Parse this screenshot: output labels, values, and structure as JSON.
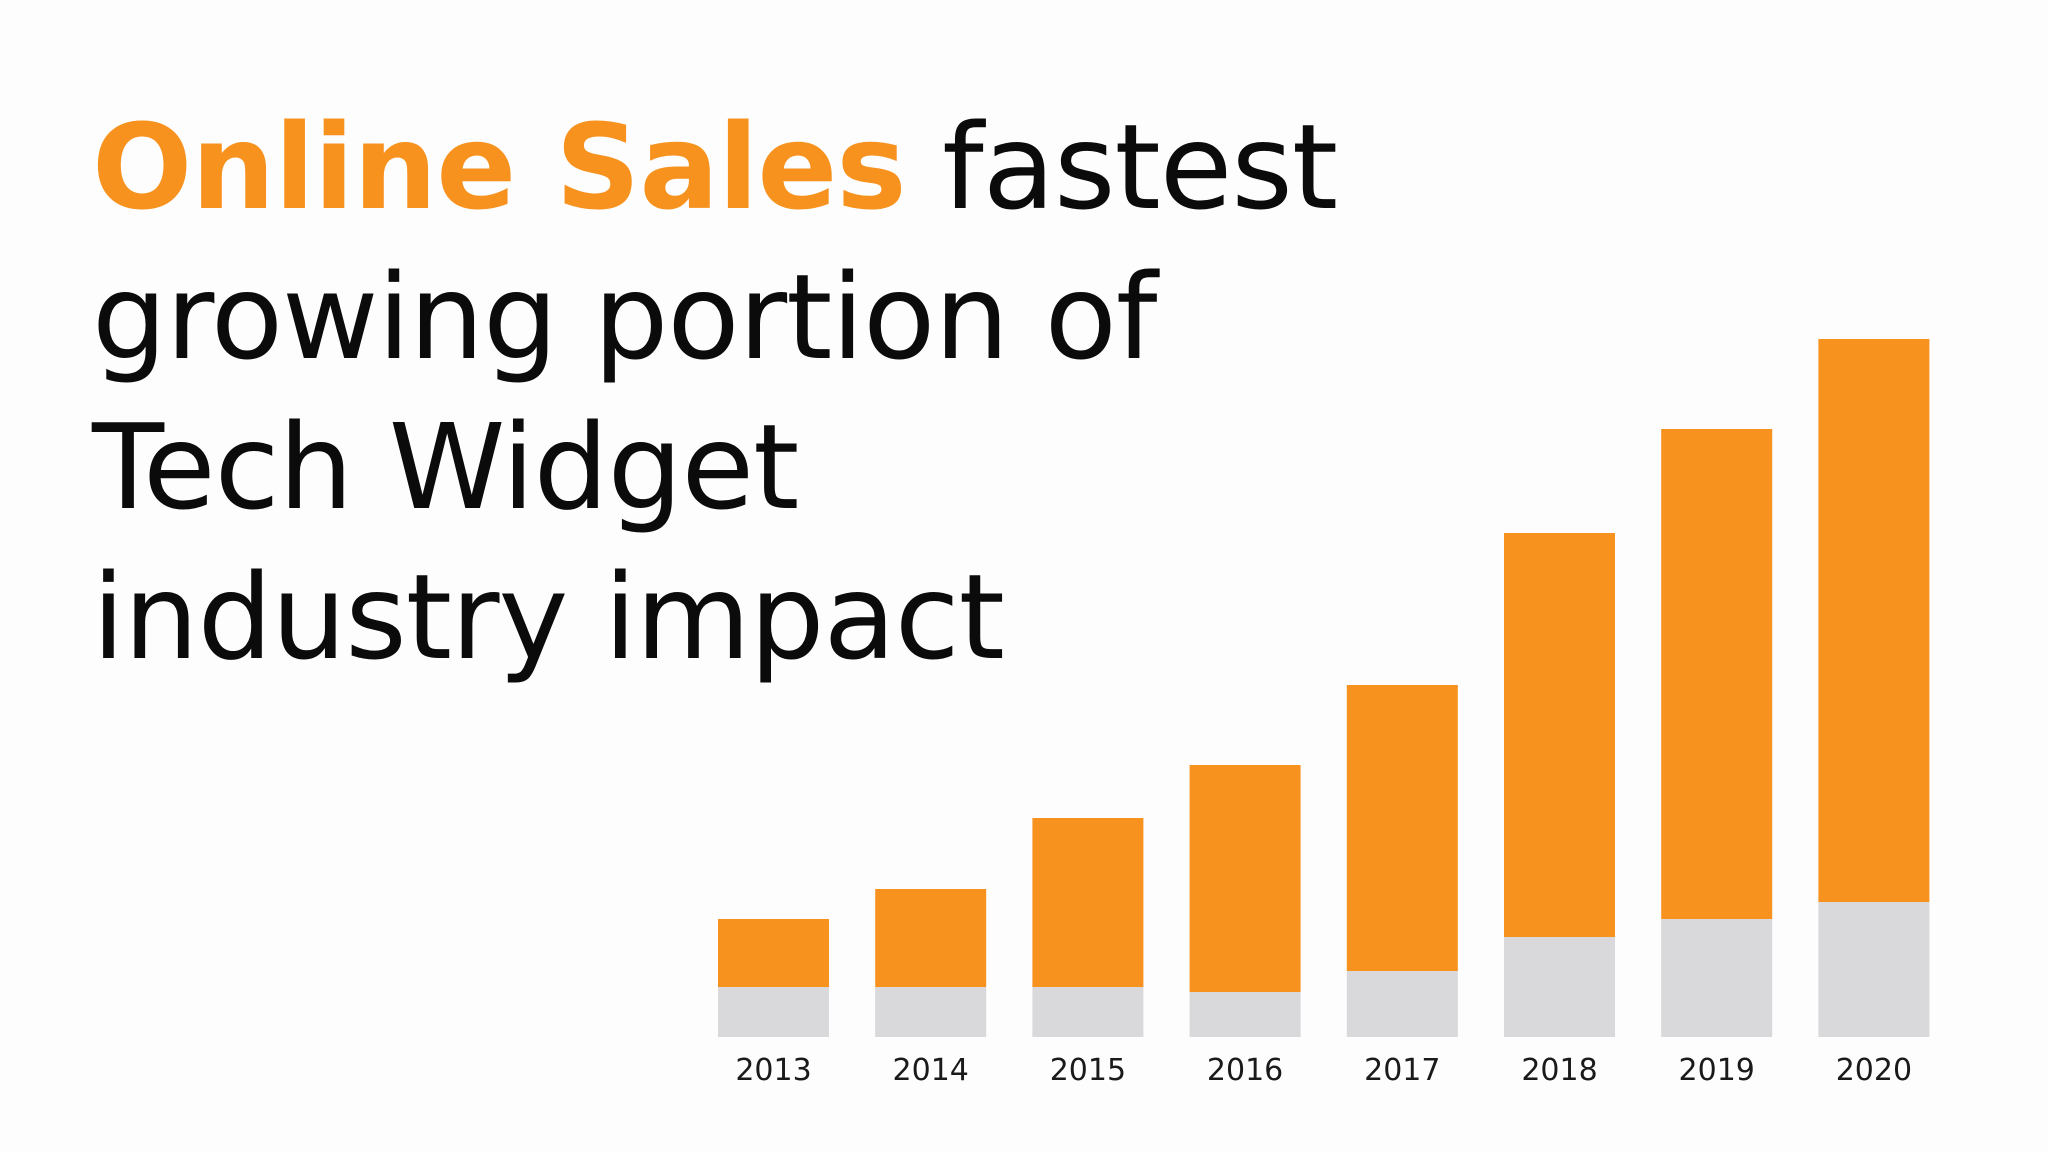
{
  "headline": {
    "accent": "Online Sales",
    "rest_line1": "fastest",
    "line2": "growing portion of",
    "line3": "Tech Widget",
    "line4": "industry impact"
  },
  "colors": {
    "accent": "#f7921e",
    "base_segment": "#d9d8da",
    "text": "#0b0b0b"
  },
  "chart_data": {
    "type": "bar",
    "stacked": true,
    "title": "",
    "xlabel": "",
    "ylabel": "",
    "categories": [
      "2013",
      "2014",
      "2015",
      "2016",
      "2017",
      "2018",
      "2019",
      "2020"
    ],
    "series": [
      {
        "values": [
          50,
          50,
          50,
          45,
          66,
          100,
          118,
          135
        ],
        "color": "#d9d8da"
      },
      {
        "values": [
          68,
          98,
          169,
          227,
          286,
          404,
          490,
          563
        ],
        "color": "#f7921e"
      }
    ],
    "ylim": [
      0,
      700
    ],
    "grid": false,
    "legend": "none"
  }
}
